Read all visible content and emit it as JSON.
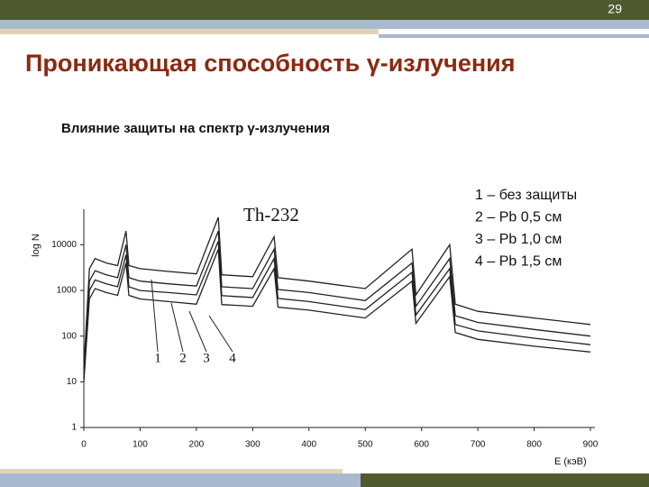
{
  "slide_number": "29",
  "title": "Проникающая способность γ-излучения",
  "subtitle": "Влияние защиты на спектр γ-излучения",
  "chart_data": {
    "type": "line",
    "annotation": "Th-232",
    "y_label": "log N",
    "x_label": "E (кэВ)",
    "x": [
      0,
      10,
      20,
      40,
      60,
      75,
      80,
      100,
      150,
      200,
      239,
      245,
      300,
      338,
      345,
      400,
      500,
      583,
      590,
      650,
      660,
      700,
      800,
      900
    ],
    "series": [
      {
        "name": "1 – без защиты",
        "color": "#222222",
        "values": [
          20,
          3000,
          5000,
          4000,
          3500,
          20000,
          3500,
          3000,
          2600,
          2300,
          40000,
          2200,
          2000,
          15000,
          1900,
          1600,
          1100,
          8000,
          800,
          10000,
          500,
          350,
          250,
          180
        ]
      },
      {
        "name": "2 – Pb 0,5 см",
        "color": "#222222",
        "values": [
          15,
          1600,
          2700,
          2200,
          1900,
          10000,
          1900,
          1600,
          1400,
          1250,
          20000,
          1200,
          1100,
          8000,
          1050,
          900,
          600,
          4000,
          450,
          5000,
          280,
          200,
          140,
          100
        ]
      },
      {
        "name": "3 – Pb 1,0 см",
        "color": "#222222",
        "values": [
          12,
          1000,
          1700,
          1400,
          1200,
          6000,
          1200,
          1000,
          900,
          800,
          12000,
          770,
          700,
          5000,
          670,
          570,
          380,
          2500,
          290,
          3000,
          180,
          130,
          90,
          65
        ]
      },
      {
        "name": "4 – Pb 1,5 см",
        "color": "#222222",
        "values": [
          10,
          650,
          1100,
          900,
          780,
          4000,
          780,
          650,
          570,
          500,
          8000,
          490,
          450,
          3000,
          430,
          370,
          250,
          1600,
          190,
          2000,
          120,
          85,
          60,
          45
        ]
      }
    ],
    "curve_labels": [
      "1",
      "2",
      "3",
      "4"
    ],
    "log_y": true,
    "grid": false,
    "xlim": [
      0,
      900
    ],
    "xticks": [
      0,
      100,
      200,
      300,
      400,
      500,
      600,
      700,
      800,
      900
    ],
    "ylim": [
      1,
      60000
    ],
    "yticks": [
      1,
      10,
      100,
      1000,
      10000
    ]
  }
}
